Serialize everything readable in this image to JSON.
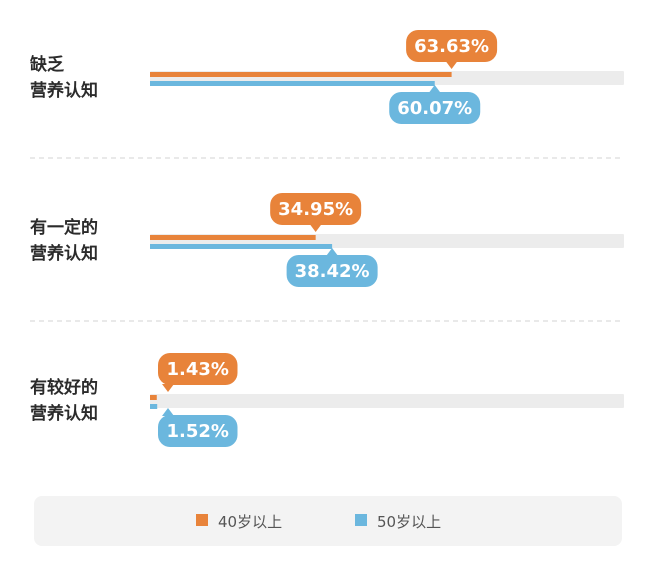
{
  "chart_data": {
    "type": "bar",
    "orientation": "horizontal",
    "categories": [
      [
        "缺乏",
        "营养认知"
      ],
      [
        "有一定的",
        "营养认知"
      ],
      [
        "有较好的",
        "营养认知"
      ]
    ],
    "series": [
      {
        "name": "40岁以上",
        "color": "#e8833a",
        "values": [
          63.63,
          34.95,
          1.43
        ],
        "labels": [
          "63.63%",
          "34.95%",
          "1.43%"
        ]
      },
      {
        "name": "50岁以上",
        "color": "#6bb7de",
        "values": [
          60.07,
          38.42,
          1.52
        ],
        "labels": [
          "60.07%",
          "38.42%",
          "1.52%"
        ]
      }
    ],
    "xlim": [
      0,
      100
    ],
    "track_color": "#ececec",
    "legend_position": "bottom",
    "grid": false
  }
}
